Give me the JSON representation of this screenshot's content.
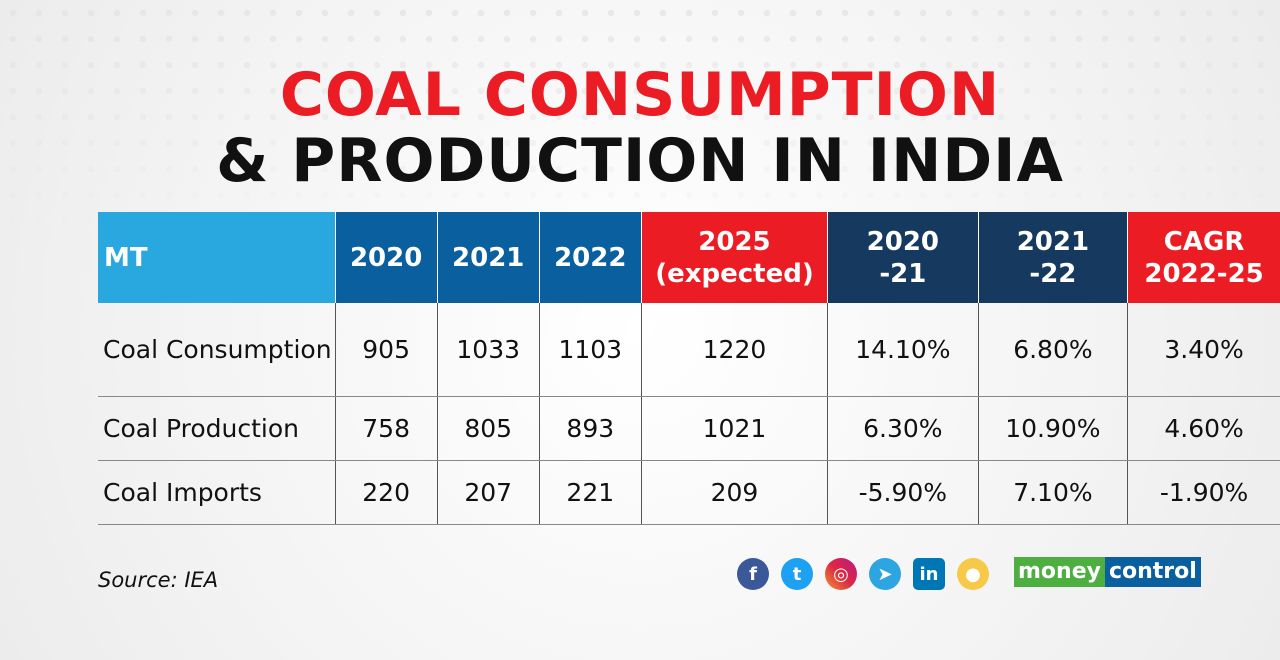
{
  "title_line1": "COAL CONSUMPTION",
  "title_line2": "& PRODUCTION IN INDIA",
  "source": "Source: IEA",
  "brand": {
    "part1": "money",
    "part2": "control"
  },
  "social_icons": [
    "facebook-icon",
    "twitter-icon",
    "instagram-icon",
    "telegram-icon",
    "linkedin-icon",
    "koo-icon"
  ],
  "colors": {
    "title_red": "#ec1c24",
    "header_light_blue": "#29a8e0",
    "header_blue": "#0a5f9e",
    "header_navy": "#163a5f",
    "header_red": "#ec1c24"
  },
  "chart_data": {
    "type": "table",
    "columns": [
      "MT",
      "2020",
      "2021",
      "2022",
      "2025 (expected)",
      "2020 -21",
      "2021 -22",
      "CAGR 2022-25"
    ],
    "rows": [
      [
        "Coal Consumption",
        "905",
        "1033",
        "1103",
        "1220",
        "14.10%",
        "6.80%",
        "3.40%"
      ],
      [
        "Coal Production",
        "758",
        "805",
        "893",
        "1021",
        "6.30%",
        "10.90%",
        "4.60%"
      ],
      [
        "Coal Imports",
        "220",
        "207",
        "221",
        "209",
        "-5.90%",
        "7.10%",
        "-1.90%"
      ]
    ]
  }
}
